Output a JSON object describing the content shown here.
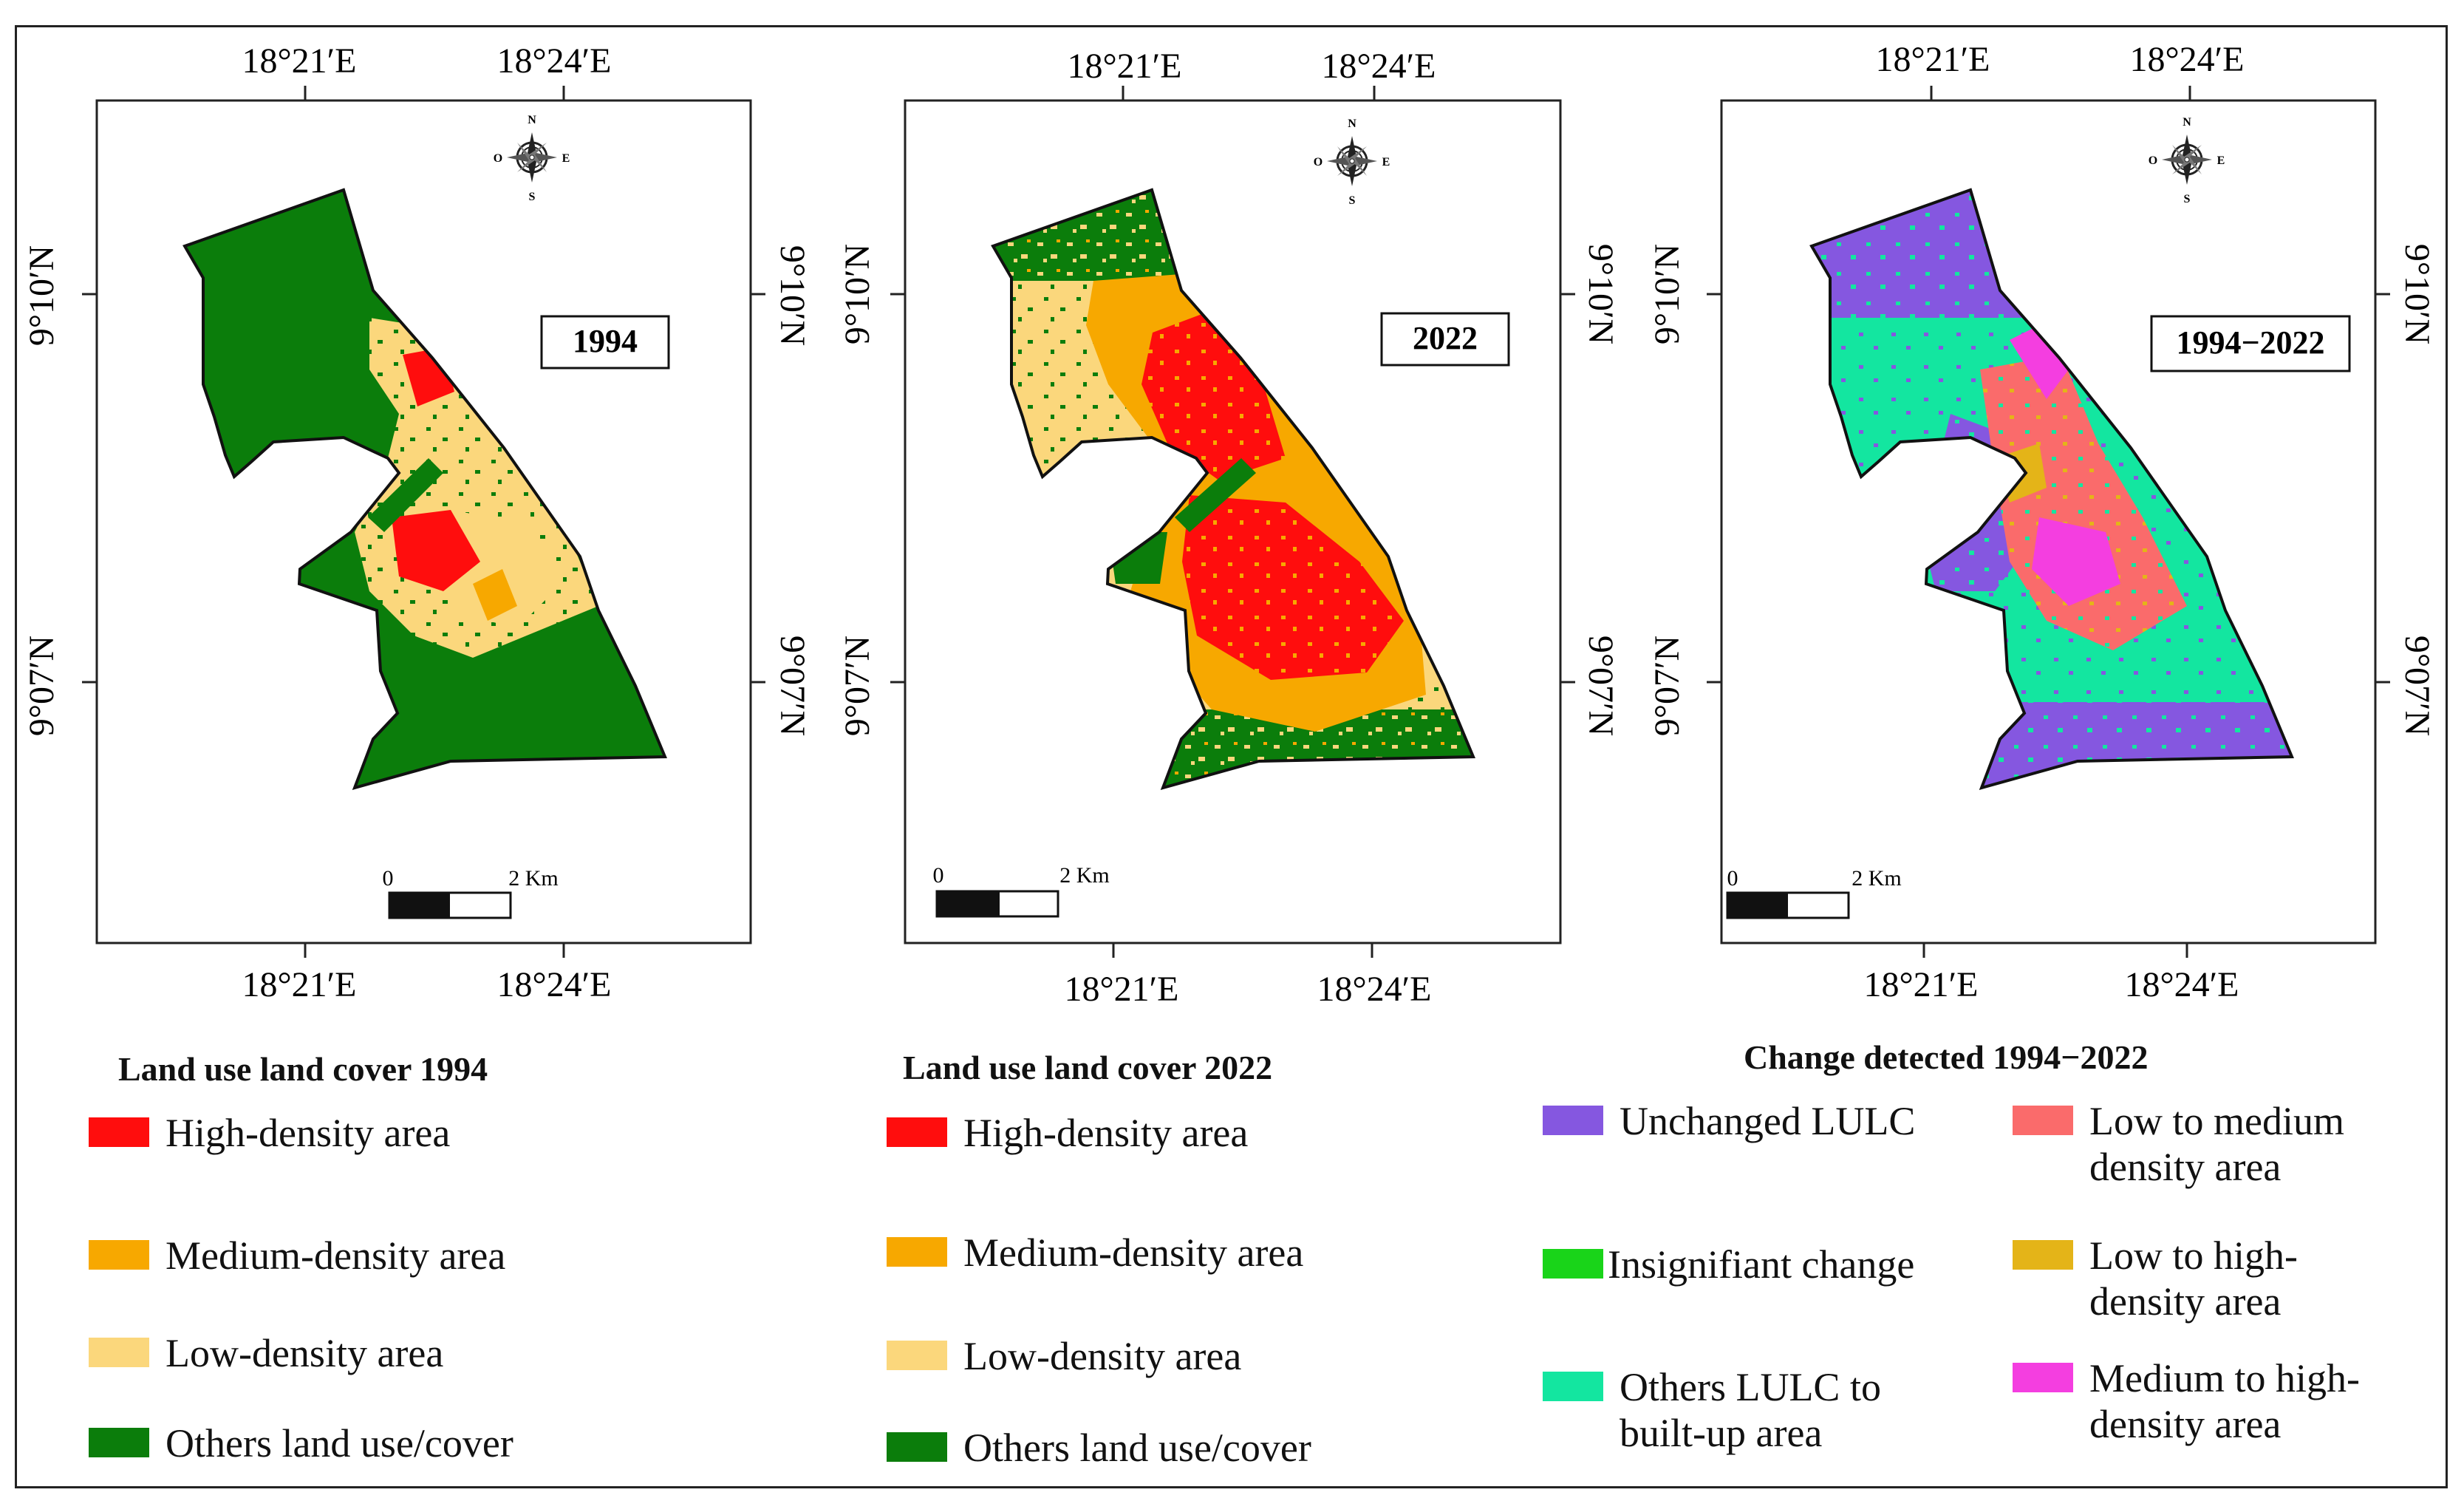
{
  "panels": [
    {
      "id": "1994",
      "year_label": "1994",
      "top_lon_labels": [
        "18°21′E",
        "18°24′E"
      ],
      "bottom_lon_labels": [
        "18°21′E",
        "18°24′E"
      ],
      "left_lat_labels": [
        "9°10′N",
        "9°07′N"
      ],
      "right_lat_labels": [
        "9°10′N",
        "9°07′N"
      ],
      "scale_zero": "0",
      "scale_end": "2 Km"
    },
    {
      "id": "2022",
      "year_label": "2022",
      "top_lon_labels": [
        "18°21′E",
        "18°24′E"
      ],
      "bottom_lon_labels": [
        "18°21′E",
        "18°24′E"
      ],
      "left_lat_labels": [
        "9°10′N",
        "9°07′N"
      ],
      "right_lat_labels": [
        "9°10′N",
        "9°07′N"
      ],
      "scale_zero": "0",
      "scale_end": "2 Km"
    },
    {
      "id": "change",
      "year_label": "1994−2022",
      "top_lon_labels": [
        "18°21′E",
        "18°24′E"
      ],
      "bottom_lon_labels": [
        "18°21′E",
        "18°24′E"
      ],
      "left_lat_labels": [
        "9°10′N",
        "9°07′N"
      ],
      "right_lat_labels": [
        "9°10′N",
        "9°07′N"
      ],
      "scale_zero": "0",
      "scale_end": "2 Km"
    }
  ],
  "compass": {
    "north": "N",
    "east": "E",
    "south": "S",
    "west": "O"
  },
  "legends": {
    "lulc_1994": {
      "title": "Land use land cover 1994",
      "items": [
        {
          "label": "High-density area",
          "color": "#ff0d0d"
        },
        {
          "label": "Medium-density area",
          "color": "#f7a800"
        },
        {
          "label": "Low-density area",
          "color": "#fbd77c"
        },
        {
          "label": "Others land use/cover",
          "color": "#0b7d0b"
        }
      ]
    },
    "lulc_2022": {
      "title": "Land use land cover 2022",
      "items": [
        {
          "label": "High-density area",
          "color": "#ff0d0d"
        },
        {
          "label": "Medium-density area",
          "color": "#f7a800"
        },
        {
          "label": "Low-density area",
          "color": "#fbd77c"
        },
        {
          "label": "Others land use/cover",
          "color": "#0b7d0b"
        }
      ]
    },
    "change": {
      "title": "Change detected 1994−2022",
      "items": [
        {
          "label": "Unchanged LULC",
          "color": "#8557e0"
        },
        {
          "label": "Low to medium density area",
          "color": "#fa6b6b"
        },
        {
          "label": "Insignifiant change",
          "color": "#19d419"
        },
        {
          "label": "Low to high-density area",
          "color": "#e4b418"
        },
        {
          "label": "Others LULC to built-up area",
          "color": "#13e6a0"
        },
        {
          "label": "Medium to high-density area",
          "color": "#f43ee0"
        }
      ]
    }
  },
  "colors": {
    "high": "#ff0d0d",
    "medium": "#f7a800",
    "low": "#fbd77c",
    "others": "#0b7d0b",
    "unchanged": "#8557e0",
    "low_to_medium": "#fa6b6b",
    "insignificant": "#19d419",
    "low_to_high": "#e4b418",
    "others_to_builtup": "#13e6a0",
    "medium_to_high": "#f43ee0"
  }
}
